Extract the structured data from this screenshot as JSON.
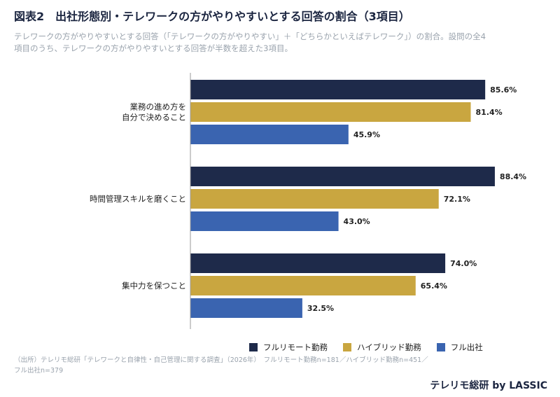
{
  "header": {
    "title": "図表2　出社形態別・テレワークの方がやりやすいとする回答の割合（3項目）",
    "subtitle_line1": "テレワークの方がやりやすいとする回答（「テレワークの方がやりやすい」＋「どちらかといえばテレワーク」）の割合。設問の全4",
    "subtitle_line2": "項目のうち、テレワークの方がやりやすいとする回答が半数を超えた3項目。"
  },
  "footer": {
    "source_line1": "（出所）テレリモ総研「テレワークと自律性・自己管理に関する調査」（2026年）　フルリモート勤務n=181／ハイブリッド勤務n=451／",
    "source_line2": "フル出社n=379",
    "brand": "テレリモ総研 by LASSIC"
  },
  "chart_data": {
    "type": "bar",
    "orientation": "horizontal",
    "unit": "%",
    "xlim": [
      0,
      100
    ],
    "grid": false,
    "legend_position": "bottom-right",
    "categories": [
      [
        "業務の進め方を",
        "自分で決めること"
      ],
      [
        "時間管理スキルを磨くこと"
      ],
      [
        "集中力を保つこと"
      ]
    ],
    "series": [
      {
        "name": "フルリモート勤務",
        "color": "#1e2a4a",
        "values": [
          85.6,
          88.4,
          74.0
        ]
      },
      {
        "name": "ハイブリッド勤務",
        "color": "#c9a640",
        "values": [
          81.4,
          72.1,
          65.4
        ]
      },
      {
        "name": "フル出社",
        "color": "#3a64b0",
        "values": [
          45.9,
          43.0,
          32.5
        ]
      }
    ]
  }
}
